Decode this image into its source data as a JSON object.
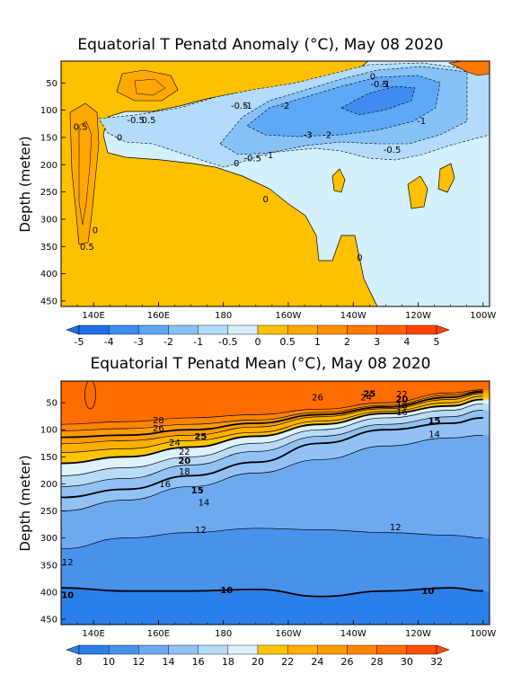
{
  "chart_data": [
    {
      "type": "contour",
      "title": "Equatorial T Penatd Anomaly (°C), May 08 2020",
      "ylabel": "Depth (meter)",
      "xticks": [
        "140E",
        "160E",
        "180",
        "160W",
        "140W",
        "120W",
        "100W"
      ],
      "yticks": [
        "50",
        "100",
        "150",
        "200",
        "250",
        "300",
        "350",
        "400",
        "450"
      ],
      "ylim": [
        460,
        10
      ],
      "colorbar": {
        "levels": [
          "-5",
          "-4",
          "-3",
          "-2",
          "-1",
          "-0.5",
          "0",
          "0.5",
          "1",
          "2",
          "3",
          "4",
          "5"
        ],
        "colors": [
          "#1e6fe8",
          "#3e8cf0",
          "#5ea8f5",
          "#86c2f8",
          "#b2dcfa",
          "#d4f0fc",
          "#ffc000",
          "#ffa800",
          "#ff9000",
          "#ff7800",
          "#ff6000",
          "#ff4400"
        ]
      },
      "contour_labels": [
        {
          "text": "0.5",
          "lon": 136,
          "depth": 130
        },
        {
          "text": "0",
          "lon": 148,
          "depth": 150
        },
        {
          "text": "-0.5",
          "lon": 153,
          "depth": 118
        },
        {
          "text": "0.5",
          "lon": 157,
          "depth": 118
        },
        {
          "text": "0",
          "lon": 184,
          "depth": 197
        },
        {
          "text": "-0.5",
          "lon": 185,
          "depth": 92
        },
        {
          "text": "-1",
          "lon": 187.5,
          "depth": 92
        },
        {
          "text": "-2",
          "lon": 199,
          "depth": 92
        },
        {
          "text": "-3",
          "lon": 206,
          "depth": 145
        },
        {
          "text": "-2",
          "lon": 212,
          "depth": 145
        },
        {
          "text": "-0.5",
          "lon": 189,
          "depth": 188
        },
        {
          "text": "-1",
          "lon": 194,
          "depth": 182
        },
        {
          "text": "-1",
          "lon": 241,
          "depth": 120
        },
        {
          "text": "-0.5",
          "lon": 232,
          "depth": 172
        },
        {
          "text": "0",
          "lon": 193,
          "depth": 263
        },
        {
          "text": "0",
          "lon": 140.5,
          "depth": 320
        },
        {
          "text": "0.5",
          "lon": 138,
          "depth": 350
        },
        {
          "text": "0",
          "lon": 222,
          "depth": 370
        },
        {
          "text": "0",
          "lon": 226,
          "depth": 38
        },
        {
          "text": "-0.5",
          "lon": 228,
          "depth": 52
        },
        {
          "text": "-1",
          "lon": 230,
          "depth": 52
        }
      ]
    },
    {
      "type": "contour",
      "title": "Equatorial T Penatd Mean (°C), May 08 2020",
      "ylabel": "Depth (meter)",
      "xticks": [
        "140E",
        "160E",
        "180",
        "160W",
        "140W",
        "120W",
        "100W"
      ],
      "yticks": [
        "50",
        "100",
        "150",
        "200",
        "250",
        "300",
        "350",
        "400",
        "450"
      ],
      "ylim": [
        460,
        10
      ],
      "colorbar": {
        "levels": [
          "8",
          "10",
          "12",
          "14",
          "16",
          "18",
          "20",
          "22",
          "24",
          "26",
          "28",
          "30",
          "32"
        ],
        "colors": [
          "#2a80e8",
          "#4892ec",
          "#6ea9f0",
          "#92c2f4",
          "#b8dbf8",
          "#def2fc",
          "#ffc400",
          "#ffb000",
          "#ff9c00",
          "#ff8400",
          "#ff6c00",
          "#ff4c00"
        ]
      },
      "contours": [
        {
          "level": 28,
          "depth_at": [
            [
              130,
              90
            ],
            [
              150,
              85
            ],
            [
              170,
              78
            ],
            [
              190,
              72
            ],
            [
              210,
              62
            ],
            [
              230,
              50
            ],
            [
              250,
              32
            ],
            [
              260,
              26
            ]
          ]
        },
        {
          "level": 26,
          "depth_at": [
            [
              130,
              102
            ],
            [
              150,
              98
            ],
            [
              170,
              90
            ],
            [
              190,
              82
            ],
            [
              210,
              68
            ],
            [
              230,
              55
            ],
            [
              250,
              36
            ],
            [
              260,
              28
            ]
          ]
        },
        {
          "level": 25,
          "depth_at": [
            [
              130,
              114
            ],
            [
              150,
              110
            ],
            [
              170,
              100
            ],
            [
              190,
              88
            ],
            [
              210,
              72
            ],
            [
              230,
              58
            ],
            [
              250,
              40
            ],
            [
              260,
              30
            ]
          ]
        },
        {
          "level": 24,
          "depth_at": [
            [
              130,
              126
            ],
            [
              150,
              120
            ],
            [
              170,
              110
            ],
            [
              190,
              95
            ],
            [
              210,
              76
            ],
            [
              230,
              61
            ],
            [
              250,
              44
            ],
            [
              260,
              33
            ]
          ]
        },
        {
          "level": 22,
          "depth_at": [
            [
              130,
              142
            ],
            [
              150,
              135
            ],
            [
              170,
              120
            ],
            [
              190,
              105
            ],
            [
              210,
              84
            ],
            [
              230,
              66
            ],
            [
              250,
              50
            ],
            [
              260,
              38
            ]
          ]
        },
        {
          "level": 20,
          "depth_at": [
            [
              130,
              162
            ],
            [
              150,
              150
            ],
            [
              170,
              132
            ],
            [
              190,
              112
            ],
            [
              210,
              90
            ],
            [
              230,
              70
            ],
            [
              250,
              56
            ],
            [
              260,
              44
            ]
          ]
        },
        {
          "level": 18,
          "depth_at": [
            [
              130,
              185
            ],
            [
              150,
              170
            ],
            [
              170,
              150
            ],
            [
              190,
              125
            ],
            [
              210,
              100
            ],
            [
              230,
              78
            ],
            [
              250,
              64
            ],
            [
              260,
              52
            ]
          ]
        },
        {
          "level": 16,
          "depth_at": [
            [
              130,
              205
            ],
            [
              150,
              190
            ],
            [
              170,
              165
            ],
            [
              190,
              140
            ],
            [
              210,
              112
            ],
            [
              230,
              90
            ],
            [
              250,
              76
            ],
            [
              260,
              64
            ]
          ]
        },
        {
          "level": 15,
          "depth_at": [
            [
              130,
              225
            ],
            [
              150,
              210
            ],
            [
              170,
              185
            ],
            [
              190,
              160
            ],
            [
              210,
              125
            ],
            [
              230,
              100
            ],
            [
              250,
              88
            ],
            [
              260,
              78
            ]
          ]
        },
        {
          "level": 14,
          "depth_at": [
            [
              130,
              250
            ],
            [
              150,
              230
            ],
            [
              170,
              205
            ],
            [
              190,
              180
            ],
            [
              210,
              155
            ],
            [
              230,
              130
            ],
            [
              250,
              115
            ],
            [
              260,
              110
            ]
          ]
        },
        {
          "level": 12,
          "depth_at": [
            [
              130,
              320
            ],
            [
              150,
              300
            ],
            [
              170,
              290
            ],
            [
              190,
              282
            ],
            [
              210,
              285
            ],
            [
              230,
              290
            ],
            [
              250,
              295
            ],
            [
              260,
              300
            ]
          ]
        },
        {
          "level": 10,
          "depth_at": [
            [
              130,
              392
            ],
            [
              150,
              398
            ],
            [
              170,
              398
            ],
            [
              190,
              395
            ],
            [
              210,
              408
            ],
            [
              230,
              398
            ],
            [
              250,
              392
            ],
            [
              260,
              398
            ]
          ]
        }
      ],
      "contour_labels": [
        {
          "text": "28",
          "lon": 160,
          "depth": 82
        },
        {
          "text": "26",
          "lon": 160,
          "depth": 97
        },
        {
          "text": "25",
          "lon": 173,
          "depth": 112
        },
        {
          "text": "24",
          "lon": 165,
          "depth": 124
        },
        {
          "text": "22",
          "lon": 168,
          "depth": 140
        },
        {
          "text": "20",
          "lon": 168,
          "depth": 157
        },
        {
          "text": "18",
          "lon": 168,
          "depth": 177
        },
        {
          "text": "16",
          "lon": 162,
          "depth": 200
        },
        {
          "text": "15",
          "lon": 172,
          "depth": 212
        },
        {
          "text": "14",
          "lon": 174,
          "depth": 234
        },
        {
          "text": "26",
          "lon": 209,
          "depth": 40
        },
        {
          "text": "25",
          "lon": 225,
          "depth": 33
        },
        {
          "text": "24",
          "lon": 224,
          "depth": 40
        },
        {
          "text": "22",
          "lon": 235,
          "depth": 34
        },
        {
          "text": "20",
          "lon": 235,
          "depth": 43
        },
        {
          "text": "18",
          "lon": 235,
          "depth": 55
        },
        {
          "text": "16",
          "lon": 235,
          "depth": 67
        },
        {
          "text": "15",
          "lon": 245,
          "depth": 83
        },
        {
          "text": "14",
          "lon": 245,
          "depth": 108
        },
        {
          "text": "12",
          "lon": 132,
          "depth": 345
        },
        {
          "text": "12",
          "lon": 173,
          "depth": 285
        },
        {
          "text": "12",
          "lon": 233,
          "depth": 280
        },
        {
          "text": "10",
          "lon": 132,
          "depth": 405
        },
        {
          "text": "10",
          "lon": 181,
          "depth": 396
        },
        {
          "text": "10",
          "lon": 243,
          "depth": 398
        }
      ]
    }
  ]
}
